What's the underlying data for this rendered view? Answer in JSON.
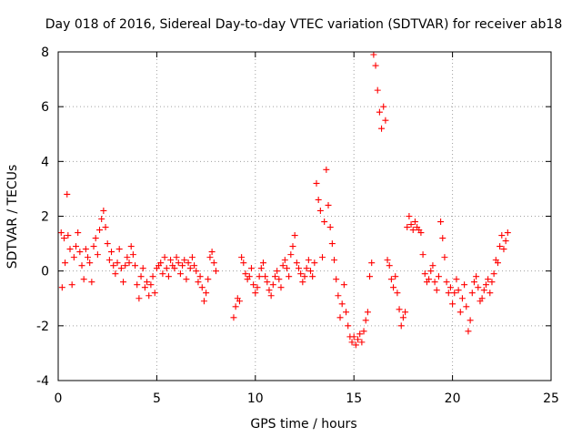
{
  "chart_data": {
    "type": "scatter",
    "title": "Day 018 of 2016, Sidereal Day-to-day VTEC variation (SDTVAR) for receiver ab18",
    "xlabel": "GPS time / hours",
    "ylabel": "SDTVAR / TECUs",
    "xlim": [
      0,
      25
    ],
    "ylim": [
      -4,
      8
    ],
    "xticks": [
      0,
      5,
      10,
      15,
      20,
      25
    ],
    "yticks": [
      -4,
      -2,
      0,
      2,
      4,
      6,
      8
    ],
    "xtick_labels": [
      "0",
      "5",
      "10",
      "15",
      "20",
      "25"
    ],
    "ytick_labels": [
      "-4",
      "-2",
      "0",
      "2",
      "4",
      "6",
      "8"
    ],
    "grid": true,
    "marker": "plus",
    "color": "#ff0000",
    "series": [
      {
        "name": "SDTVAR",
        "x": [
          0.15,
          0.2,
          0.3,
          0.35,
          0.45,
          0.5,
          0.6,
          0.7,
          0.8,
          0.9,
          1.0,
          1.1,
          1.2,
          1.3,
          1.4,
          1.5,
          1.6,
          1.7,
          1.8,
          1.9,
          2.0,
          2.1,
          2.2,
          2.3,
          2.4,
          2.5,
          2.6,
          2.7,
          2.8,
          2.9,
          3.0,
          3.1,
          3.2,
          3.3,
          3.4,
          3.5,
          3.6,
          3.7,
          3.8,
          3.9,
          4.0,
          4.1,
          4.2,
          4.3,
          4.4,
          4.5,
          4.6,
          4.7,
          4.8,
          4.9,
          5.0,
          5.1,
          5.2,
          5.3,
          5.4,
          5.5,
          5.6,
          5.7,
          5.8,
          5.9,
          6.0,
          6.1,
          6.2,
          6.3,
          6.4,
          6.5,
          6.6,
          6.7,
          6.8,
          6.9,
          7.0,
          7.1,
          7.2,
          7.3,
          7.4,
          7.5,
          7.6,
          7.7,
          7.8,
          7.9,
          8.0,
          8.9,
          9.0,
          9.1,
          9.2,
          9.3,
          9.4,
          9.5,
          9.6,
          9.7,
          9.8,
          9.9,
          10.0,
          10.1,
          10.2,
          10.3,
          10.4,
          10.5,
          10.6,
          10.7,
          10.8,
          10.9,
          11.0,
          11.1,
          11.2,
          11.3,
          11.4,
          11.5,
          11.6,
          11.7,
          11.8,
          11.9,
          12.0,
          12.1,
          12.2,
          12.3,
          12.4,
          12.5,
          12.6,
          12.7,
          12.8,
          12.9,
          13.0,
          13.1,
          13.2,
          13.3,
          13.4,
          13.5,
          13.6,
          13.7,
          13.8,
          13.9,
          14.0,
          14.1,
          14.2,
          14.3,
          14.4,
          14.5,
          14.6,
          14.7,
          14.8,
          14.9,
          15.0,
          15.1,
          15.2,
          15.3,
          15.4,
          15.5,
          15.6,
          15.7,
          15.8,
          15.9,
          16.0,
          16.1,
          16.2,
          16.3,
          16.4,
          16.5,
          16.6,
          16.7,
          16.8,
          16.9,
          17.0,
          17.1,
          17.2,
          17.3,
          17.4,
          17.5,
          17.6,
          17.7,
          17.8,
          17.9,
          18.0,
          18.1,
          18.2,
          18.3,
          18.4,
          18.5,
          18.6,
          18.7,
          18.8,
          18.9,
          19.0,
          19.1,
          19.2,
          19.3,
          19.4,
          19.5,
          19.6,
          19.7,
          19.8,
          19.9,
          20.0,
          20.1,
          20.2,
          20.3,
          20.4,
          20.5,
          20.6,
          20.7,
          20.8,
          20.9,
          21.0,
          21.1,
          21.2,
          21.3,
          21.4,
          21.5,
          21.6,
          21.7,
          21.8,
          21.9,
          22.0,
          22.1,
          22.2,
          22.3,
          22.4,
          22.5,
          22.6,
          22.7,
          22.8
        ],
        "y": [
          1.4,
          -0.6,
          1.2,
          0.3,
          2.8,
          1.3,
          0.8,
          -0.5,
          0.5,
          0.9,
          1.4,
          0.7,
          0.2,
          -0.3,
          0.8,
          0.5,
          0.3,
          -0.4,
          0.9,
          1.2,
          0.6,
          1.5,
          1.9,
          2.2,
          1.6,
          1.0,
          0.4,
          0.7,
          0.2,
          -0.1,
          0.3,
          0.8,
          0.1,
          -0.4,
          0.2,
          0.5,
          0.3,
          0.9,
          0.6,
          0.2,
          -0.5,
          -1.0,
          -0.2,
          0.1,
          -0.6,
          -0.4,
          -0.9,
          -0.5,
          -0.2,
          -0.8,
          0.1,
          0.2,
          0.3,
          -0.1,
          0.5,
          0.1,
          -0.2,
          0.4,
          0.2,
          0.1,
          0.5,
          0.3,
          -0.1,
          0.2,
          0.4,
          -0.3,
          0.3,
          0.1,
          0.5,
          0.2,
          0.0,
          -0.4,
          -0.2,
          -0.6,
          -1.1,
          -0.8,
          -0.3,
          0.5,
          0.7,
          0.3,
          0.0,
          -1.7,
          -1.3,
          -1.0,
          -1.1,
          0.5,
          0.3,
          -0.1,
          -0.3,
          -0.2,
          0.1,
          -0.5,
          -0.8,
          -0.6,
          -0.2,
          0.1,
          0.3,
          -0.2,
          -0.4,
          -0.7,
          -0.9,
          -0.5,
          -0.2,
          0.0,
          -0.3,
          -0.6,
          0.2,
          0.4,
          0.1,
          -0.2,
          0.6,
          0.9,
          1.3,
          0.3,
          0.1,
          -0.1,
          -0.4,
          -0.2,
          0.1,
          0.4,
          0.0,
          -0.2,
          0.3,
          3.2,
          2.6,
          2.2,
          0.5,
          1.8,
          3.7,
          2.4,
          1.6,
          1.0,
          0.4,
          -0.3,
          -0.9,
          -1.7,
          -1.2,
          -0.5,
          -1.5,
          -2.0,
          -2.4,
          -2.6,
          -2.4,
          -2.7,
          -2.5,
          -2.3,
          -2.6,
          -2.2,
          -1.8,
          -1.5,
          -0.2,
          0.3,
          7.9,
          7.5,
          6.6,
          5.8,
          5.2,
          6.0,
          5.5,
          0.4,
          0.2,
          -0.3,
          -0.6,
          -0.2,
          -0.8,
          -1.4,
          -2.0,
          -1.7,
          -1.5,
          1.6,
          2.0,
          1.7,
          1.5,
          1.8,
          1.6,
          1.5,
          1.4,
          0.6,
          -0.1,
          -0.4,
          -0.3,
          0.0,
          0.2,
          -0.4,
          -0.7,
          -0.2,
          1.8,
          1.2,
          0.5,
          -0.4,
          -0.8,
          -0.6,
          -1.2,
          -0.8,
          -0.3,
          -0.7,
          -1.5,
          -1.0,
          -0.5,
          -1.3,
          -2.2,
          -1.8,
          -0.8,
          -0.4,
          -0.2,
          -0.6,
          -1.1,
          -1.0,
          -0.7,
          -0.5,
          -0.3,
          -0.8,
          -0.4,
          -0.1,
          0.4,
          0.3,
          0.9,
          1.3,
          0.8,
          1.1,
          1.4
        ]
      }
    ]
  }
}
